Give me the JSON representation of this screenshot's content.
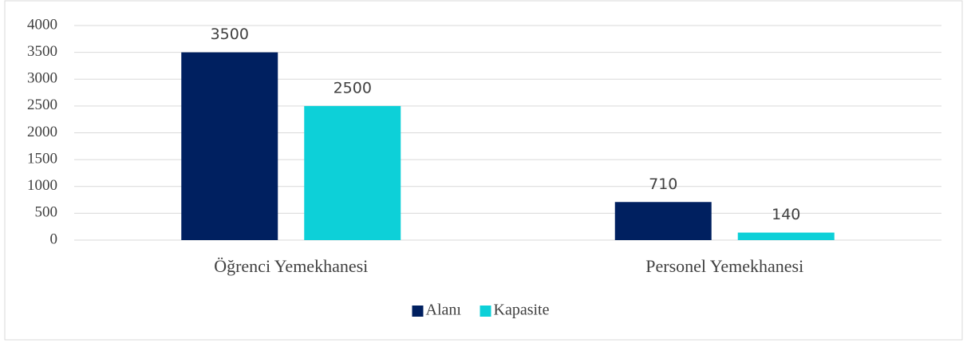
{
  "chart_data": {
    "type": "bar",
    "categories": [
      "Öğrenci Yemekhanesi",
      "Personel Yemekhanesi"
    ],
    "series": [
      {
        "name": "Alanı",
        "color": "#002060",
        "values": [
          3500,
          710
        ]
      },
      {
        "name": "Kapasite",
        "color": "#0dd0d8",
        "values": [
          2500,
          140
        ]
      }
    ],
    "ylim": [
      0,
      4000
    ],
    "yticks": [
      0,
      500,
      1000,
      1500,
      2000,
      2500,
      3000,
      3500,
      4000
    ],
    "grid": true,
    "legend": "bottom"
  }
}
